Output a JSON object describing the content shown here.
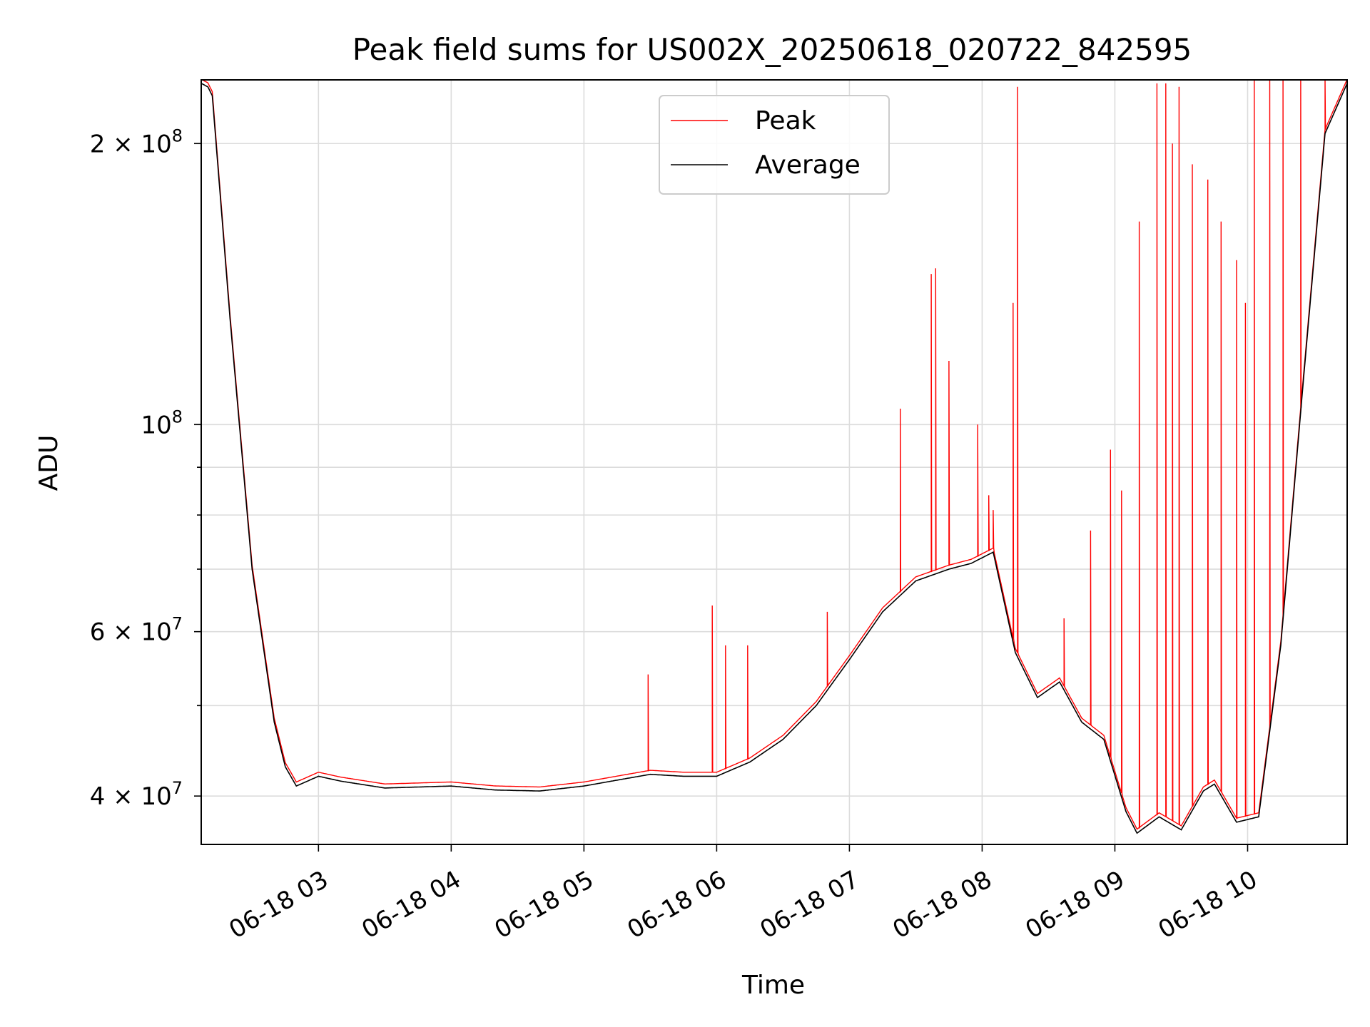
{
  "chart_data": {
    "type": "line",
    "title": "Peak field sums for US002X_20250618_020722_842595",
    "xlabel": "Time",
    "ylabel": "ADU",
    "y_scale": "log",
    "grid": true,
    "legend_position": "upper center",
    "xlim": [
      "06-18 02:07",
      "06-18 10:45"
    ],
    "ylim": [
      35500000,
      234000000
    ],
    "x_ticks": [
      "06-18 03",
      "06-18 04",
      "06-18 05",
      "06-18 06",
      "06-18 07",
      "06-18 08",
      "06-18 09",
      "06-18 10"
    ],
    "y_ticks": [
      {
        "value": 40000000,
        "label": "4 × 10",
        "exp": "7"
      },
      {
        "value": 60000000,
        "label": "6 × 10",
        "exp": "7"
      },
      {
        "value": 100000000,
        "label": "10",
        "exp": "8"
      },
      {
        "value": 200000000,
        "label": "2 × 10",
        "exp": "8"
      }
    ],
    "y_minor_ticks": [
      50000000,
      70000000,
      80000000,
      90000000
    ],
    "series": [
      {
        "name": "Average",
        "color": "#000000",
        "x": [
          "06-18 02:07",
          "06-18 02:10",
          "06-18 02:12",
          "06-18 02:20",
          "06-18 02:30",
          "06-18 02:40",
          "06-18 02:45",
          "06-18 02:50",
          "06-18 03:00",
          "06-18 03:10",
          "06-18 03:30",
          "06-18 04:00",
          "06-18 04:20",
          "06-18 04:40",
          "06-18 05:00",
          "06-18 05:15",
          "06-18 05:30",
          "06-18 05:45",
          "06-18 06:00",
          "06-18 06:15",
          "06-18 06:30",
          "06-18 06:45",
          "06-18 07:00",
          "06-18 07:15",
          "06-18 07:30",
          "06-18 07:45",
          "06-18 07:55",
          "06-18 08:05",
          "06-18 08:15",
          "06-18 08:25",
          "06-18 08:35",
          "06-18 08:45",
          "06-18 08:55",
          "06-18 09:05",
          "06-18 09:10",
          "06-18 09:20",
          "06-18 09:30",
          "06-18 09:40",
          "06-18 09:45",
          "06-18 09:55",
          "06-18 10:05",
          "06-18 10:15",
          "06-18 10:25",
          "06-18 10:35",
          "06-18 10:45"
        ],
        "y": [
          232000000,
          230000000,
          225000000,
          130000000,
          70000000,
          48000000,
          43000000,
          41000000,
          42000000,
          41500000,
          40800000,
          41000000,
          40600000,
          40500000,
          41000000,
          41600000,
          42200000,
          42000000,
          42000000,
          43500000,
          46000000,
          50000000,
          56000000,
          63000000,
          68000000,
          70000000,
          71000000,
          73000000,
          57000000,
          51000000,
          53000000,
          48000000,
          46000000,
          38500000,
          36500000,
          38000000,
          36800000,
          40500000,
          41200000,
          37500000,
          38000000,
          58000000,
          110000000,
          205000000,
          232000000
        ]
      },
      {
        "name": "Peak",
        "color": "#ff0000",
        "x": [
          "06-18 05:29",
          "06-18 05:58",
          "06-18 06:04",
          "06-18 06:14",
          "06-18 06:50",
          "06-18 07:23",
          "06-18 07:37",
          "06-18 07:39",
          "06-18 07:45",
          "06-18 07:58",
          "06-18 08:03",
          "06-18 08:05",
          "06-18 08:14",
          "06-18 08:16",
          "06-18 08:37",
          "06-18 08:49",
          "06-18 08:58",
          "06-18 09:03",
          "06-18 09:11",
          "06-18 09:19",
          "06-18 09:23",
          "06-18 09:26",
          "06-18 09:29",
          "06-18 09:35",
          "06-18 09:42",
          "06-18 09:48",
          "06-18 09:55",
          "06-18 09:59",
          "06-18 10:03",
          "06-18 10:10",
          "06-18 10:16",
          "06-18 10:24",
          "06-18 10:35"
        ],
        "y": [
          54000000,
          64000000,
          58000000,
          58000000,
          63000000,
          104000000,
          145000000,
          147000000,
          117000000,
          100000000,
          84000000,
          81000000,
          135000000,
          230000000,
          62000000,
          77000000,
          94000000,
          85000000,
          165000000,
          232000000,
          232000000,
          200000000,
          230000000,
          190000000,
          183000000,
          165000000,
          150000000,
          135000000,
          235000000,
          235000000,
          235000000,
          235000000,
          235000000
        ]
      }
    ]
  }
}
